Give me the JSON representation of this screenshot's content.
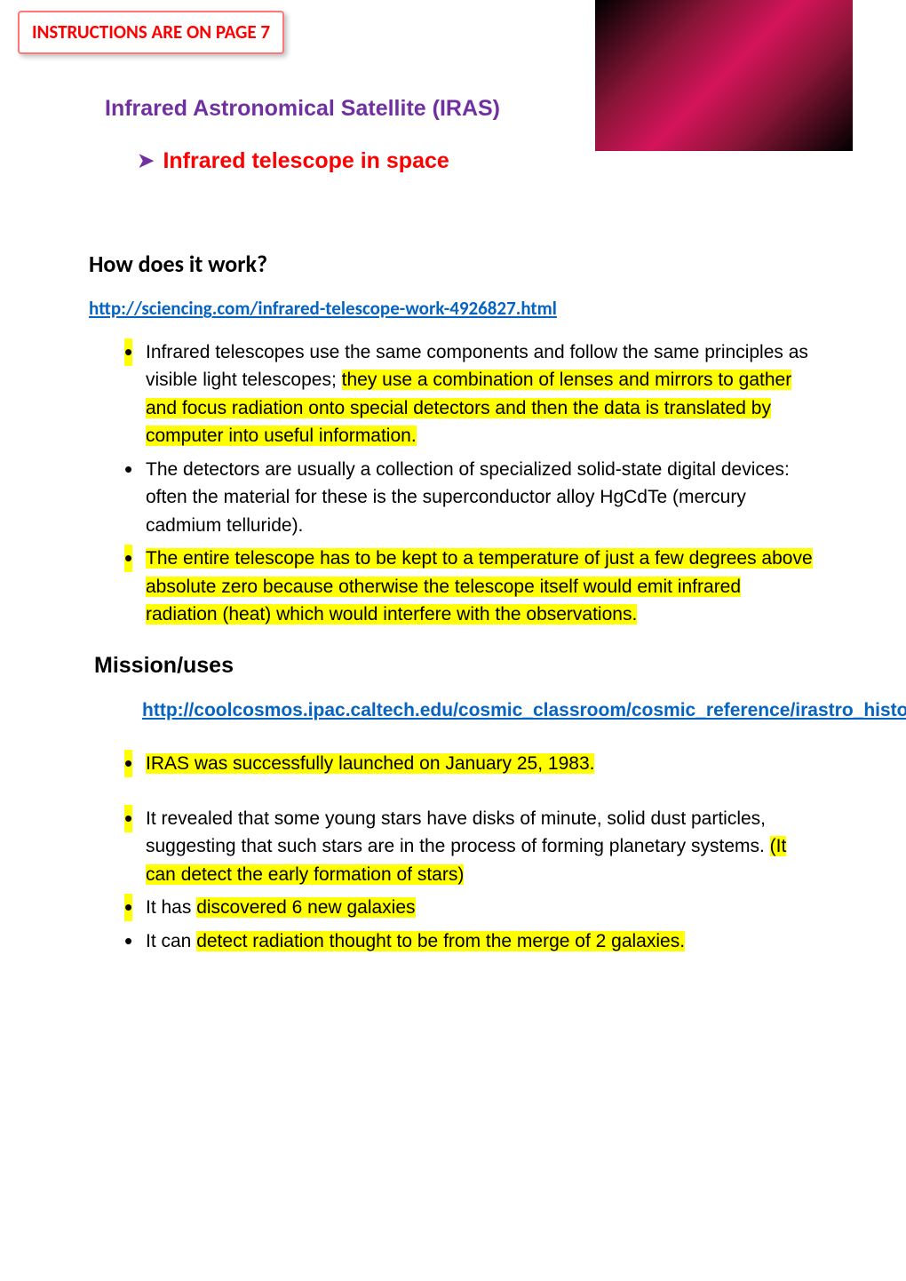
{
  "instructions_label": "INSTRUCTIONS ARE ON PAGE 7",
  "main_title": "Infrared Astronomical Satellite (IRAS)",
  "subtitle": "Infrared telescope in space",
  "section1": {
    "heading": "How does it work?",
    "url": "http://sciencing.com/infrared-telescope-work-4926827.html",
    "bullets": [
      {
        "bullet_hl": true,
        "pre_text": "Infrared telescopes use the same components and follow the same principles as visible light telescopes; ",
        "hl_text": "they use a combination of lenses and mirrors to gather and focus radiation onto special detectors and then the data is translated by computer into useful information."
      },
      {
        "bullet_hl": false,
        "pre_text": "The detectors are usually a collection of specialized solid-state digital devices: often the material for these is the superconductor alloy HgCdTe (mercury cadmium telluride).",
        "hl_text": ""
      },
      {
        "bullet_hl": true,
        "pre_text": "",
        "hl_text": "The entire telescope has to be kept to a temperature of just a few degrees above absolute zero because otherwise the telescope itself would emit infrared radiation (heat) which would interfere with the observations."
      }
    ]
  },
  "section2": {
    "heading": "Mission/uses",
    "url": "http://coolcosmos.ipac.caltech.edu/cosmic_classroom/cosmic_reference/irastro_history.html",
    "bullets": [
      {
        "bullet_hl": true,
        "parts": [
          {
            "hl": true,
            "t": "IRAS was successfully launched on January 25, 1983."
          }
        ]
      },
      {
        "bullet_hl": true,
        "parts": [
          {
            "hl": false,
            "t": "It revealed that some young stars have disks of minute, solid dust particles, suggesting that such stars are in the process of forming planetary systems. "
          },
          {
            "hl": true,
            "t": "(It can detect the early formation of stars)"
          }
        ]
      },
      {
        "bullet_hl": true,
        "parts": [
          {
            "hl": false,
            "t": "It has "
          },
          {
            "hl": true,
            "t": "discovered 6 new galaxies"
          }
        ]
      },
      {
        "bullet_hl": false,
        "parts": [
          {
            "hl": false,
            "t": "It can "
          },
          {
            "hl": true,
            "t": "detect radiation thought to be from the merge of 2 galaxies."
          }
        ]
      }
    ]
  },
  "colors": {
    "title": "#7030a0",
    "subtitle": "#ff0000",
    "link": "#0563c1",
    "highlight": "#ffff00",
    "instructions": "#ff0000",
    "instructions_border": "#ff7878"
  }
}
